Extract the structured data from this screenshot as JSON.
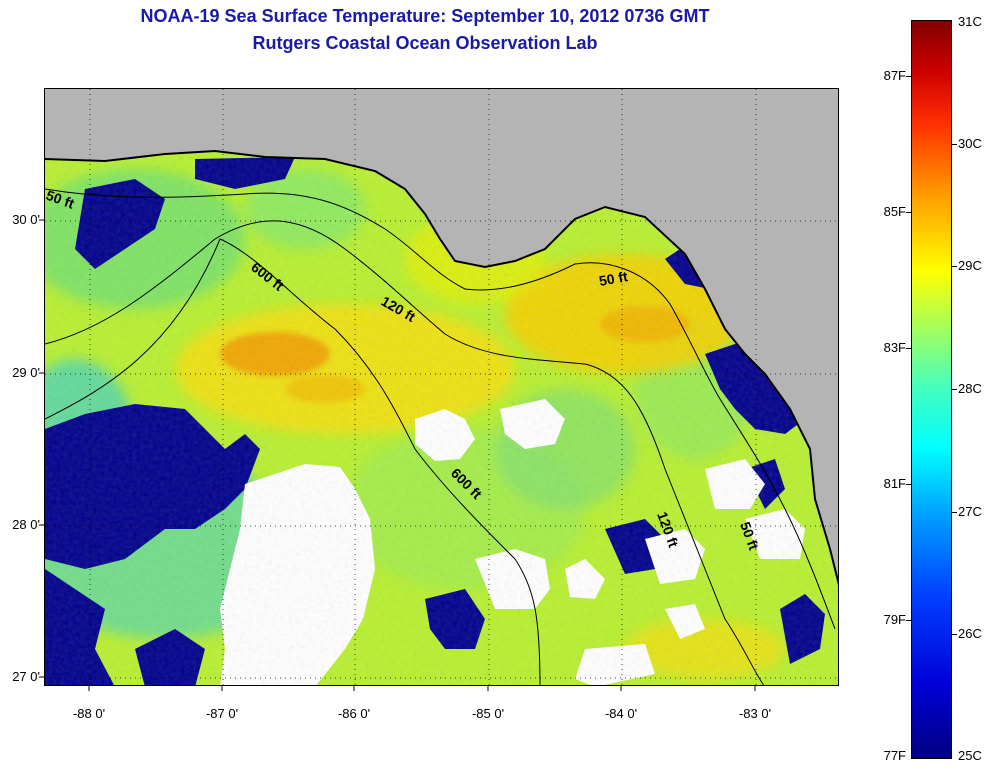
{
  "title": {
    "line1": "NOAA-19 Sea Surface Temperature:  September 10, 2012 0736 GMT",
    "line2": "Rutgers Coastal Ocean Observation Lab"
  },
  "map": {
    "latitude_labels": [
      "30 0'",
      "29 0'",
      "28 0'",
      "27 0'"
    ],
    "longitude_labels": [
      "-88 0'",
      "-87 0'",
      "-86 0'",
      "-85 0'",
      "-84 0'",
      "-83 0'"
    ],
    "contour_labels": [
      "50 ft",
      "600 ft",
      "120 ft",
      "50 ft",
      "600 ft",
      "120 ft",
      "50 ft"
    ],
    "colors": {
      "land": "#b4b4b4",
      "clouds": "#ffffff",
      "cold_water": "#00008c",
      "warm_water": "#f4c400",
      "mid_water": "#b8f030",
      "coast": "#000000"
    }
  },
  "colorbar": {
    "fahrenheit_labels": [
      "87F",
      "85F",
      "83F",
      "81F",
      "79F",
      "77F"
    ],
    "celsius_labels": [
      "31C",
      "30C",
      "29C",
      "28C",
      "27C",
      "26C",
      "25C"
    ],
    "colors": [
      "#000080",
      "#0000d8",
      "#0040ff",
      "#00a0ff",
      "#00ffff",
      "#40ffc0",
      "#a0ff60",
      "#ffff00",
      "#ffa000",
      "#ff3000",
      "#d00000",
      "#800000"
    ]
  }
}
